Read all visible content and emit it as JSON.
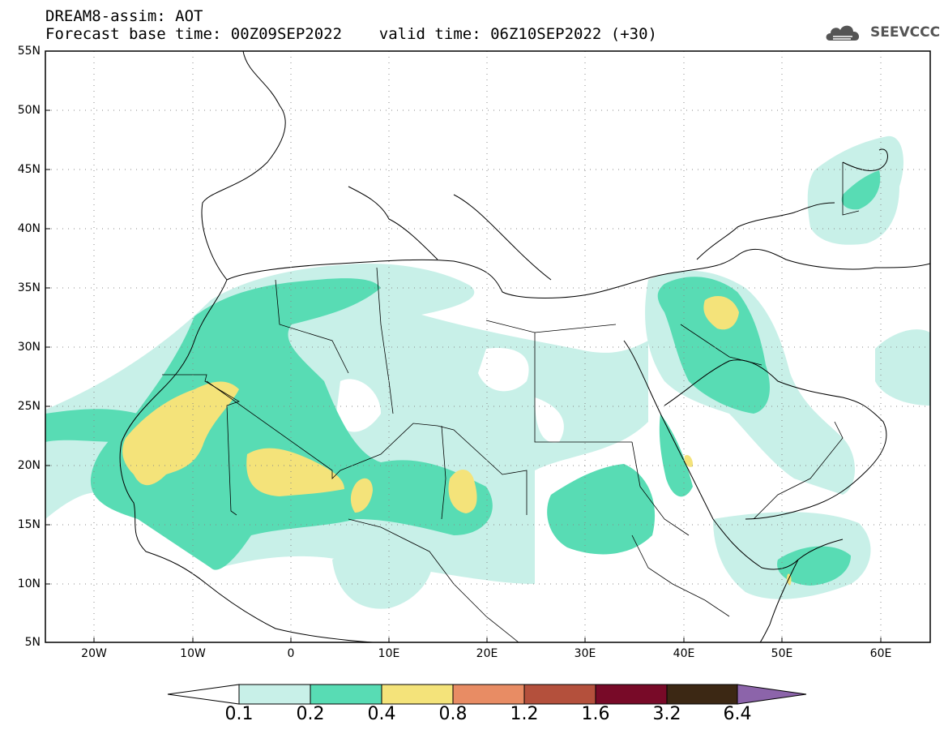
{
  "header": {
    "title_line1": "DREAM8-assim: AOT",
    "title_line2": "Forecast base time: 00Z09SEP2022    valid time: 06Z10SEP2022 (+30)"
  },
  "logo": {
    "text": "SEEVCCC",
    "icon": "cloud-icon"
  },
  "map": {
    "lon_range": [
      -25,
      65
    ],
    "lat_range": [
      5,
      55
    ],
    "lat_labels": [
      "55N",
      "50N",
      "45N",
      "40N",
      "35N",
      "30N",
      "25N",
      "20N",
      "15N",
      "10N",
      "5N"
    ],
    "lon_labels": [
      "20W",
      "10W",
      "0",
      "10E",
      "20E",
      "30E",
      "40E",
      "50E",
      "60E"
    ],
    "grid": "dotted"
  },
  "legend": {
    "levels": [
      "0.1",
      "0.2",
      "0.4",
      "0.8",
      "1.2",
      "1.6",
      "3.2",
      "6.4"
    ],
    "colors": [
      "#ffffff",
      "#c8f0e8",
      "#58dcb4",
      "#f4e37a",
      "#e88c64",
      "#b4503c",
      "#780a28",
      "#3c2814",
      "#8c64aa"
    ]
  }
}
